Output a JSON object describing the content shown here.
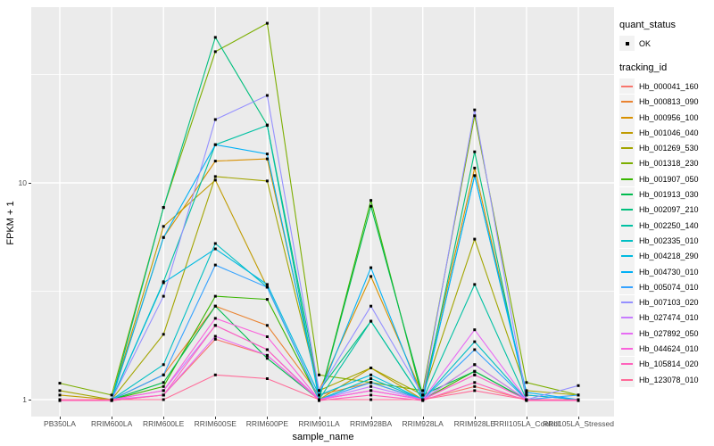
{
  "figure": {
    "background": "#FFFFFF",
    "panel_background": "#EBEBEB",
    "gridline_color": "#FFFFFF",
    "point_marker": "black-square"
  },
  "legend": {
    "quant_title": "quant_status",
    "quant_items": [
      {
        "label": "OK",
        "marker": "black-square"
      }
    ],
    "tracking_title": "tracking_id"
  },
  "chart_data": {
    "type": "line",
    "title": "",
    "xlabel": "sample_name",
    "ylabel": "FPKM + 1",
    "y_scale": "log10",
    "y_ticks": [
      1,
      10
    ],
    "y_minor": [
      3.162,
      31.62
    ],
    "ylim": [
      0.9,
      60
    ],
    "grid": true,
    "legend_position": "right",
    "categories": [
      "PB350LA",
      "RRIM600LA",
      "RRIM600LE",
      "RRIM600SE",
      "RRIM600PE",
      "RRIM901LA",
      "RRIM928BA",
      "RRIM928LA",
      "RRIM928LE",
      "RRII105LA_Control",
      "RRII105LA_Stressed"
    ],
    "series": [
      {
        "name": "Hb_000041_160",
        "color": "#F8766D",
        "values": [
          1.0,
          0.99,
          1.05,
          1.9,
          1.6,
          1.0,
          1.1,
          1.0,
          1.15,
          1.0,
          1.0
        ]
      },
      {
        "name": "Hb_000813_090",
        "color": "#EA8331",
        "values": [
          1.0,
          1.0,
          1.3,
          2.7,
          2.2,
          1.05,
          1.2,
          1.0,
          1.3,
          1.0,
          1.0
        ]
      },
      {
        "name": "Hb_000956_100",
        "color": "#D89000",
        "values": [
          1.0,
          1.0,
          5.6,
          12.6,
          12.9,
          1.1,
          3.7,
          1.05,
          11.7,
          1.05,
          1.0
        ]
      },
      {
        "name": "Hb_001046_040",
        "color": "#C09B00",
        "values": [
          1.05,
          1.0,
          6.3,
          10.3,
          3.3,
          1.0,
          1.4,
          1.0,
          1.45,
          1.0,
          1.0
        ]
      },
      {
        "name": "Hb_001269_530",
        "color": "#A3A500",
        "values": [
          1.1,
          1.0,
          2.0,
          10.7,
          10.2,
          1.1,
          1.4,
          1.05,
          5.5,
          1.1,
          1.05
        ]
      },
      {
        "name": "Hb_001318_230",
        "color": "#7CAE00",
        "values": [
          1.19,
          1.05,
          7.7,
          40.3,
          54.5,
          1.3,
          1.2,
          1.1,
          20.4,
          1.2,
          1.05
        ]
      },
      {
        "name": "Hb_001907_050",
        "color": "#39B600",
        "values": [
          1.0,
          1.0,
          1.15,
          3.0,
          2.9,
          1.0,
          8.3,
          1.0,
          1.35,
          1.0,
          1.0
        ]
      },
      {
        "name": "Hb_001913_030",
        "color": "#00BB4E",
        "values": [
          1.0,
          1.0,
          1.2,
          2.7,
          1.55,
          1.0,
          7.8,
          1.05,
          1.35,
          1.0,
          1.0
        ]
      },
      {
        "name": "Hb_002097_210",
        "color": "#00BF7D",
        "values": [
          1.0,
          1.0,
          7.7,
          46.9,
          18.5,
          1.1,
          2.3,
          1.0,
          13.9,
          1.0,
          1.0
        ]
      },
      {
        "name": "Hb_002250_140",
        "color": "#00C1A3",
        "values": [
          1.0,
          1.0,
          3.5,
          15.0,
          18.4,
          1.0,
          2.3,
          1.0,
          3.4,
          1.0,
          1.0
        ]
      },
      {
        "name": "Hb_002335_010",
        "color": "#00BFC4",
        "values": [
          1.0,
          1.0,
          1.45,
          5.25,
          3.3,
          1.0,
          1.25,
          1.0,
          1.85,
          1.0,
          1.0
        ]
      },
      {
        "name": "Hb_004218_290",
        "color": "#00BAE0",
        "values": [
          1.0,
          1.0,
          3.46,
          4.96,
          3.4,
          1.05,
          1.3,
          1.0,
          10.8,
          1.05,
          1.0
        ]
      },
      {
        "name": "Hb_004730_010",
        "color": "#00B0F6",
        "values": [
          1.0,
          1.0,
          5.6,
          15.0,
          13.6,
          1.05,
          4.06,
          1.0,
          10.8,
          1.08,
          1.0
        ]
      },
      {
        "name": "Hb_005074_010",
        "color": "#35A2FF",
        "values": [
          1.0,
          1.0,
          1.3,
          4.18,
          3.3,
          1.0,
          1.2,
          1.0,
          1.7,
          1.0,
          1.05
        ]
      },
      {
        "name": "Hb_007103_020",
        "color": "#9590FF",
        "values": [
          1.0,
          1.0,
          3.0,
          19.6,
          25.3,
          1.1,
          2.7,
          1.05,
          21.7,
          1.0,
          1.16
        ]
      },
      {
        "name": "Hb_027474_010",
        "color": "#C77CFF",
        "values": [
          1.0,
          1.0,
          1.1,
          2.2,
          1.7,
          1.0,
          1.15,
          1.0,
          1.45,
          1.0,
          1.0
        ]
      },
      {
        "name": "Hb_027892_050",
        "color": "#E76BF3",
        "values": [
          1.0,
          1.0,
          1.05,
          1.96,
          1.6,
          1.0,
          1.1,
          1.0,
          2.1,
          1.0,
          1.0
        ]
      },
      {
        "name": "Hb_044624_010",
        "color": "#FA62DB",
        "values": [
          1.0,
          1.0,
          1.1,
          2.37,
          1.95,
          1.0,
          1.1,
          1.0,
          1.3,
          1.0,
          1.0
        ]
      },
      {
        "name": "Hb_105814_020",
        "color": "#FF62BC",
        "values": [
          0.99,
          0.99,
          1.05,
          2.2,
          1.7,
          0.99,
          1.05,
          0.99,
          1.2,
          0.99,
          0.99
        ]
      },
      {
        "name": "Hb_123078_010",
        "color": "#FF6A98",
        "values": [
          1.0,
          1.0,
          1.0,
          1.3,
          1.25,
          1.0,
          1.0,
          1.0,
          1.1,
          1.0,
          1.0
        ]
      }
    ]
  }
}
